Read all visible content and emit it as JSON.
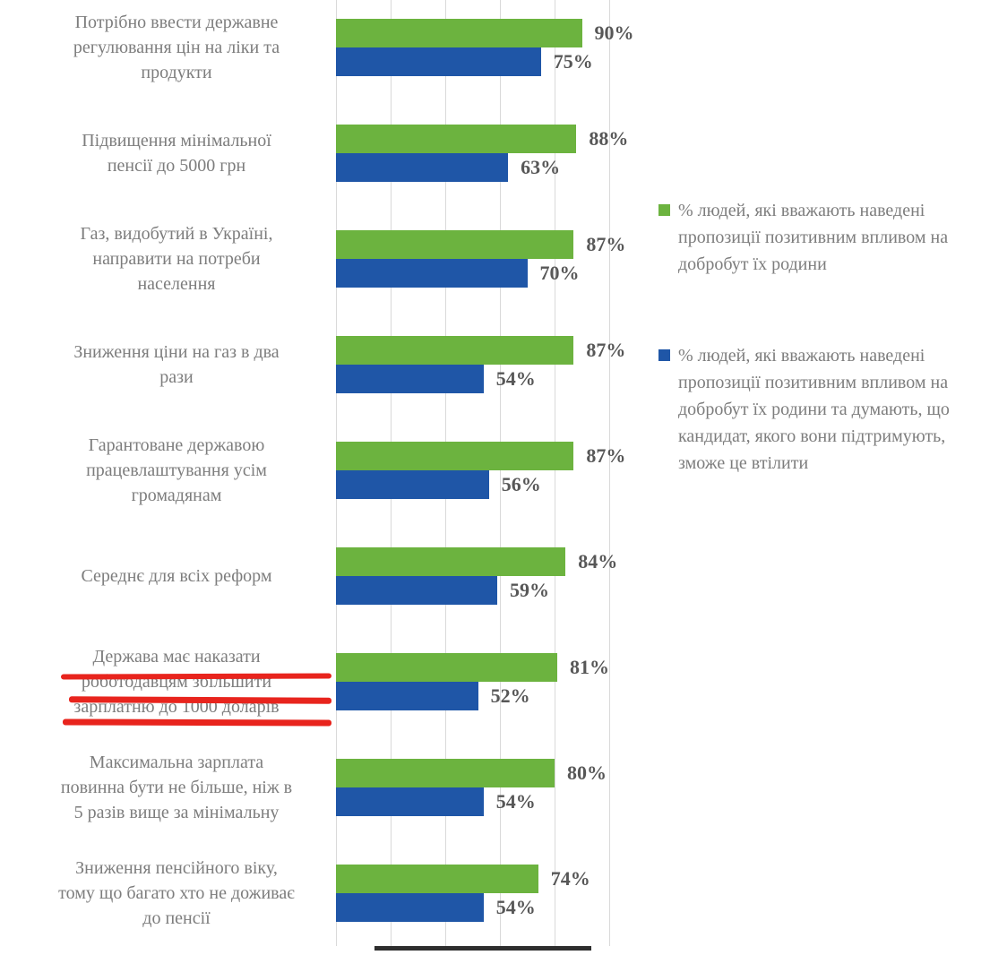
{
  "chart_data": {
    "type": "bar",
    "orientation": "horizontal",
    "title": "",
    "xlabel": "",
    "ylabel": "",
    "xlim": [
      0,
      100
    ],
    "gridline_step": 20,
    "grid": true,
    "legend_position": "right",
    "value_suffix": "%",
    "categories": [
      "Потрібно ввести державне регулювання цін на ліки та продукти",
      "Підвищення мінімальної пенсії до 5000 грн",
      "Газ, видобутий в Україні, направити на потреби населення",
      "Зниження ціни на газ в два рази",
      "Гарантоване державою працевлаштування усім громадянам",
      "Середнє для всіх реформ",
      "Держава має наказати роботодавцям збільшити зарплатню до 1000 доларів",
      "Максимальна зарплата повинна бути не більше, ніж в 5 разів вище за мінімальну",
      "Зниження пенсійного віку, тому що багато хто не доживає до пенсії"
    ],
    "categories_lines": [
      [
        "Потрібно ввести державне",
        "регулювання цін на ліки та",
        "продукти"
      ],
      [
        "Підвищення мінімальної",
        "пенсії до 5000 грн"
      ],
      [
        "Газ, видобутий в Україні,",
        "направити на потреби",
        "населення"
      ],
      [
        "Зниження ціни на газ в два",
        "рази"
      ],
      [
        "Гарантоване державою",
        "працевлаштування усім",
        "громадянам"
      ],
      [
        "Середнє для всіх реформ"
      ],
      [
        "Держава має наказати",
        "роботодавцям збільшити",
        "зарплатню до 1000 доларів"
      ],
      [
        "Максимальна зарплата",
        "повинна бути не більше, ніж в",
        "5 разів вище за мінімальну"
      ],
      [
        "Зниження пенсійного віку,",
        "тому що багато хто не доживає",
        "до пенсії"
      ]
    ],
    "series": [
      {
        "name": "% людей, які вважають наведені пропозиції позитивним впливом на добробут їх родини",
        "color": "#6cb33f",
        "values": [
          90,
          88,
          87,
          87,
          87,
          84,
          81,
          80,
          74
        ]
      },
      {
        "name": "% людей, які вважають наведені пропозиції позитивним впливом на добробут їх родини та думають, що кандидат, якого вони підтримують, зможе це втілити",
        "color": "#1f56a7",
        "values": [
          75,
          63,
          70,
          54,
          56,
          59,
          52,
          54,
          54
        ]
      }
    ]
  },
  "annotations": {
    "red_underlined_category": "Держава має наказати роботодавцям збільшити зарплатню до 1000 доларів",
    "red_color": "#e8241d",
    "black_underline_color": "#2e2e2e"
  },
  "colors": {
    "gridline": "#d9d9d9",
    "category_text": "#7d7d7d",
    "value_text": "#575757",
    "legend_text": "#7d7d7d"
  }
}
